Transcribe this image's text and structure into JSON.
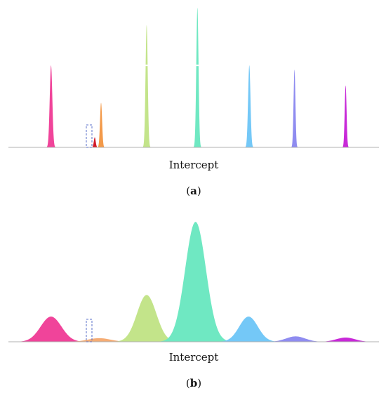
{
  "chart_data": [
    {
      "type": "area",
      "panel": "a",
      "xlabel": "Intercept",
      "label_open": "(",
      "label_letter": "a",
      "label_close": ")",
      "grid": false,
      "highlight_series": "Series 2",
      "series": [
        {
          "color": "#f0449a",
          "center": 0.115,
          "width": 0.0035,
          "peak": 0.57,
          "gap_at": 0.57
        },
        {
          "color": "#d21a2a",
          "center": 0.233,
          "width": 0.0025,
          "peak": 0.07
        },
        {
          "color": "#f39a4a",
          "center": 0.25,
          "width": 0.0028,
          "peak": 0.31
        },
        {
          "color": "#c3e48a",
          "center": 0.373,
          "width": 0.003,
          "peak": 0.85,
          "gap_at": 0.57
        },
        {
          "color": "#6fe8c2",
          "center": 0.51,
          "width": 0.003,
          "peak": 0.97,
          "gap_at": 0.57
        },
        {
          "color": "#74c8f7",
          "center": 0.65,
          "width": 0.0032,
          "peak": 0.57
        },
        {
          "color": "#8f8cf0",
          "center": 0.772,
          "width": 0.0025,
          "peak": 0.54
        },
        {
          "color": "#c829d8",
          "center": 0.91,
          "width": 0.0025,
          "peak": 0.43
        }
      ]
    },
    {
      "type": "area",
      "panel": "b",
      "xlabel": "Intercept",
      "label_open": "(",
      "label_letter": "b",
      "label_close": ")",
      "grid": false,
      "highlight_series": "Series 2",
      "series": [
        {
          "color": "#f0449a",
          "center": 0.115,
          "width": 0.028,
          "peak": 0.21
        },
        {
          "color": "#f5ac74",
          "center": 0.245,
          "width": 0.03,
          "peak": 0.03
        },
        {
          "color": "#c3e48a",
          "center": 0.373,
          "width": 0.026,
          "peak": 0.39
        },
        {
          "color": "#6fe8c2",
          "center": 0.505,
          "width": 0.028,
          "peak": 1.0
        },
        {
          "color": "#74c8f7",
          "center": 0.648,
          "width": 0.025,
          "peak": 0.21
        },
        {
          "color": "#8f8cf0",
          "center": 0.775,
          "width": 0.026,
          "peak": 0.045
        },
        {
          "color": "#c829d8",
          "center": 0.91,
          "width": 0.025,
          "peak": 0.035
        }
      ]
    }
  ]
}
